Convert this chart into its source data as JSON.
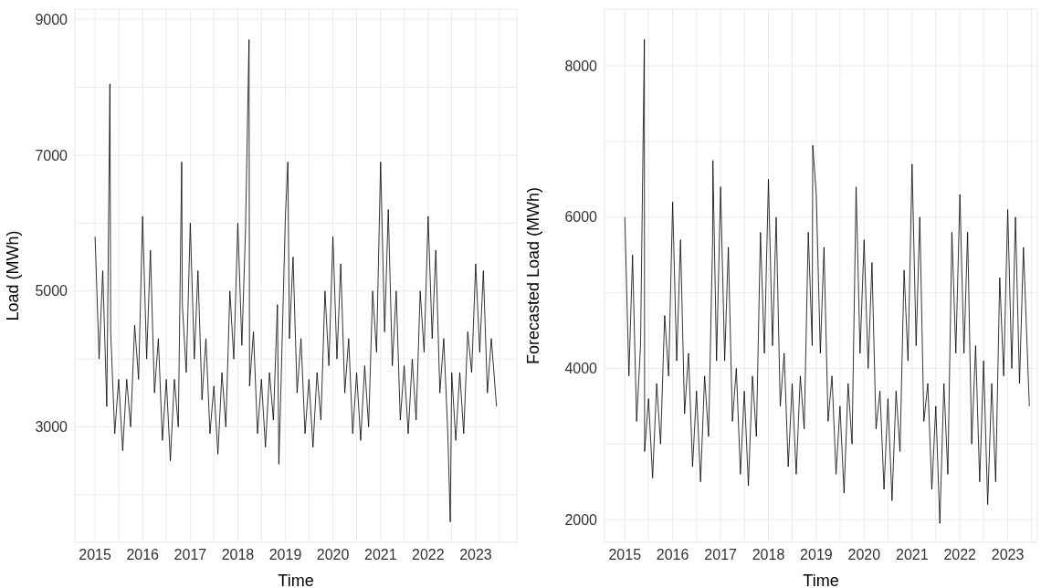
{
  "chart_data": [
    {
      "type": "line",
      "xlabel": "Time",
      "ylabel": "Load (MWh)",
      "color": "#000000",
      "grid": true,
      "xlim": [
        "2014-07-30",
        "2023-11-13"
      ],
      "ylim": [
        1300,
        9150
      ],
      "xticks": [
        {
          "value": "2015",
          "label": "2015"
        },
        {
          "value": "2015-07",
          "label": null
        },
        {
          "value": "2016",
          "label": "2016"
        },
        {
          "value": "2016-07",
          "label": null
        },
        {
          "value": "2017",
          "label": "2017"
        },
        {
          "value": "2017-07",
          "label": null
        },
        {
          "value": "2018",
          "label": "2018"
        },
        {
          "value": "2018-07",
          "label": null
        },
        {
          "value": "2019",
          "label": "2019"
        },
        {
          "value": "2019-07",
          "label": null
        },
        {
          "value": "2020",
          "label": "2020"
        },
        {
          "value": "2020-07",
          "label": null
        },
        {
          "value": "2021",
          "label": "2021"
        },
        {
          "value": "2021-07",
          "label": null
        },
        {
          "value": "2022",
          "label": "2022"
        },
        {
          "value": "2022-07",
          "label": null
        },
        {
          "value": "2023",
          "label": "2023"
        },
        {
          "value": "2023-07",
          "label": null
        }
      ],
      "yticks": [
        {
          "value": 2000,
          "label": null
        },
        3000,
        {
          "value": 4000,
          "label": null
        },
        5000,
        {
          "value": 6000,
          "label": null
        },
        7000,
        {
          "value": 8000,
          "label": null
        },
        9000
      ],
      "x": [
        "2015-01",
        "2015-02",
        "2015-03",
        "2015-04",
        "2015-04-25",
        "2015-05",
        "2015-06",
        "2015-07",
        "2015-08",
        "2015-09",
        "2015-10",
        "2015-11",
        "2015-12",
        "2016-01",
        "2016-02",
        "2016-03",
        "2016-04",
        "2016-05",
        "2016-06",
        "2016-07",
        "2016-08",
        "2016-09",
        "2016-10",
        "2016-10-27",
        "2016-11",
        "2016-12",
        "2017-01",
        "2017-02",
        "2017-03",
        "2017-04",
        "2017-05",
        "2017-06",
        "2017-07",
        "2017-08",
        "2017-09",
        "2017-10",
        "2017-11",
        "2017-12",
        "2018-01",
        "2018-02",
        "2018-03",
        "2018-03-28",
        "2018-04",
        "2018-05",
        "2018-06",
        "2018-07",
        "2018-08",
        "2018-09",
        "2018-10",
        "2018-11",
        "2018-11-12",
        "2018-12",
        "2019-01",
        "2019-01-20",
        "2019-02",
        "2019-03",
        "2019-04",
        "2019-05",
        "2019-06",
        "2019-07",
        "2019-08",
        "2019-09",
        "2019-10",
        "2019-11",
        "2019-12",
        "2020-01",
        "2020-02",
        "2020-03",
        "2020-04",
        "2020-05",
        "2020-06",
        "2020-07",
        "2020-08",
        "2020-09",
        "2020-10",
        "2020-11",
        "2020-12",
        "2021-01",
        "2021-02",
        "2021-03",
        "2021-04",
        "2021-05",
        "2021-06",
        "2021-07",
        "2021-08",
        "2021-09",
        "2021-10",
        "2021-11",
        "2021-12",
        "2022-01",
        "2022-02",
        "2022-03",
        "2022-04",
        "2022-05",
        "2022-06",
        "2022-06-20",
        "2022-07",
        "2022-08",
        "2022-09",
        "2022-10",
        "2022-11",
        "2022-12",
        "2023-01",
        "2023-02",
        "2023-03",
        "2023-04",
        "2023-05",
        "2023-06-10"
      ],
      "values": [
        5800,
        4000,
        5300,
        3300,
        8050,
        4400,
        2900,
        3700,
        2650,
        3700,
        3000,
        4500,
        3700,
        6100,
        4000,
        5600,
        3500,
        4300,
        2800,
        3700,
        2500,
        3700,
        3000,
        6900,
        4800,
        3800,
        6000,
        4000,
        5300,
        3400,
        4300,
        2900,
        3600,
        2600,
        3800,
        3000,
        5000,
        4000,
        6000,
        4200,
        5900,
        8700,
        3600,
        4400,
        2900,
        3700,
        2700,
        3800,
        3100,
        4800,
        2450,
        3800,
        6100,
        6900,
        4300,
        5500,
        3500,
        4300,
        2900,
        3700,
        2700,
        3800,
        3100,
        5000,
        3900,
        5800,
        4000,
        5400,
        3500,
        4300,
        2900,
        3800,
        2800,
        3900,
        3000,
        5000,
        4100,
        6900,
        4400,
        6200,
        3900,
        5000,
        3100,
        3900,
        2900,
        4000,
        3100,
        5000,
        4100,
        6100,
        4300,
        5600,
        3500,
        4300,
        2900,
        1600,
        3800,
        2800,
        3800,
        2900,
        4400,
        3800,
        5400,
        4100,
        5300,
        3500,
        4300,
        3300
      ]
    },
    {
      "type": "line",
      "xlabel": "Time",
      "ylabel": "Forecasted Load (MWh)",
      "color": "#000000",
      "grid": true,
      "xlim": [
        "2014-07-30",
        "2023-08-15"
      ],
      "ylim": [
        1700,
        8750
      ],
      "xticks": [
        {
          "value": "2015",
          "label": "2015"
        },
        {
          "value": "2015-07",
          "label": null
        },
        {
          "value": "2016",
          "label": "2016"
        },
        {
          "value": "2016-07",
          "label": null
        },
        {
          "value": "2017",
          "label": "2017"
        },
        {
          "value": "2017-07",
          "label": null
        },
        {
          "value": "2018",
          "label": "2018"
        },
        {
          "value": "2018-07",
          "label": null
        },
        {
          "value": "2019",
          "label": "2019"
        },
        {
          "value": "2019-07",
          "label": null
        },
        {
          "value": "2020",
          "label": "2020"
        },
        {
          "value": "2020-07",
          "label": null
        },
        {
          "value": "2021",
          "label": "2021"
        },
        {
          "value": "2021-07",
          "label": null
        },
        {
          "value": "2022",
          "label": "2022"
        },
        {
          "value": "2022-07",
          "label": null
        },
        {
          "value": "2023",
          "label": "2023"
        },
        {
          "value": "2023-07",
          "label": null
        }
      ],
      "yticks": [
        2000,
        {
          "value": 3000,
          "label": null
        },
        4000,
        {
          "value": 5000,
          "label": null
        },
        6000,
        {
          "value": 7000,
          "label": null
        },
        8000
      ],
      "x": [
        "2015-01",
        "2015-02",
        "2015-03",
        "2015-04",
        "2015-05",
        "2015-05-30",
        "2015-06",
        "2015-07",
        "2015-08",
        "2015-09",
        "2015-10",
        "2015-11",
        "2015-12",
        "2016-01",
        "2016-02",
        "2016-03",
        "2016-04",
        "2016-05",
        "2016-06",
        "2016-07",
        "2016-08",
        "2016-09",
        "2016-10",
        "2016-11",
        "2016-11-03",
        "2016-12",
        "2017-01",
        "2017-02",
        "2017-03",
        "2017-04",
        "2017-05",
        "2017-06",
        "2017-07",
        "2017-08",
        "2017-09",
        "2017-10",
        "2017-11",
        "2017-12",
        "2018-01",
        "2018-02",
        "2018-03",
        "2018-04",
        "2018-05",
        "2018-06",
        "2018-07",
        "2018-08",
        "2018-09",
        "2018-10",
        "2018-11",
        "2018-12",
        "2018-12-05",
        "2019-01",
        "2019-02",
        "2019-03",
        "2019-04",
        "2019-05",
        "2019-06",
        "2019-07",
        "2019-08",
        "2019-09",
        "2019-10",
        "2019-11",
        "2019-12",
        "2020-01",
        "2020-02",
        "2020-03",
        "2020-04",
        "2020-05",
        "2020-06",
        "2020-07",
        "2020-08",
        "2020-09",
        "2020-10",
        "2020-11",
        "2020-12",
        "2021-01",
        "2021-02",
        "2021-03",
        "2021-04",
        "2021-05",
        "2021-06",
        "2021-07",
        "2021-08",
        "2021-09",
        "2021-10",
        "2021-11",
        "2021-12",
        "2022-01",
        "2022-02",
        "2022-03",
        "2022-04",
        "2022-05",
        "2022-06",
        "2022-07",
        "2022-08",
        "2022-09",
        "2022-10",
        "2022-11",
        "2022-12",
        "2023-01",
        "2023-02",
        "2023-03",
        "2023-04",
        "2023-05",
        "2023-06-15"
      ],
      "values": [
        6000,
        3900,
        5500,
        3300,
        4300,
        8350,
        2900,
        3600,
        2550,
        3800,
        3000,
        4700,
        3900,
        6200,
        4100,
        5700,
        3400,
        4200,
        2700,
        3700,
        2500,
        3900,
        3100,
        5700,
        6750,
        4100,
        6400,
        4100,
        5600,
        3300,
        4000,
        2600,
        3700,
        2450,
        3900,
        3100,
        5800,
        4200,
        6500,
        4300,
        6000,
        3500,
        4200,
        2700,
        3800,
        2600,
        3900,
        3200,
        5800,
        4300,
        6950,
        6300,
        4200,
        5600,
        3300,
        3900,
        2600,
        3500,
        2350,
        3800,
        3000,
        6400,
        4200,
        5700,
        4000,
        5400,
        3200,
        3700,
        2400,
        3600,
        2250,
        3700,
        2900,
        5300,
        4100,
        6700,
        4300,
        6000,
        3300,
        3800,
        2400,
        3500,
        1950,
        3800,
        2600,
        5800,
        4200,
        6300,
        4200,
        5800,
        3000,
        4300,
        2500,
        4100,
        2200,
        3800,
        2500,
        5200,
        3900,
        6100,
        4000,
        6000,
        3800,
        5600,
        3500
      ]
    }
  ]
}
